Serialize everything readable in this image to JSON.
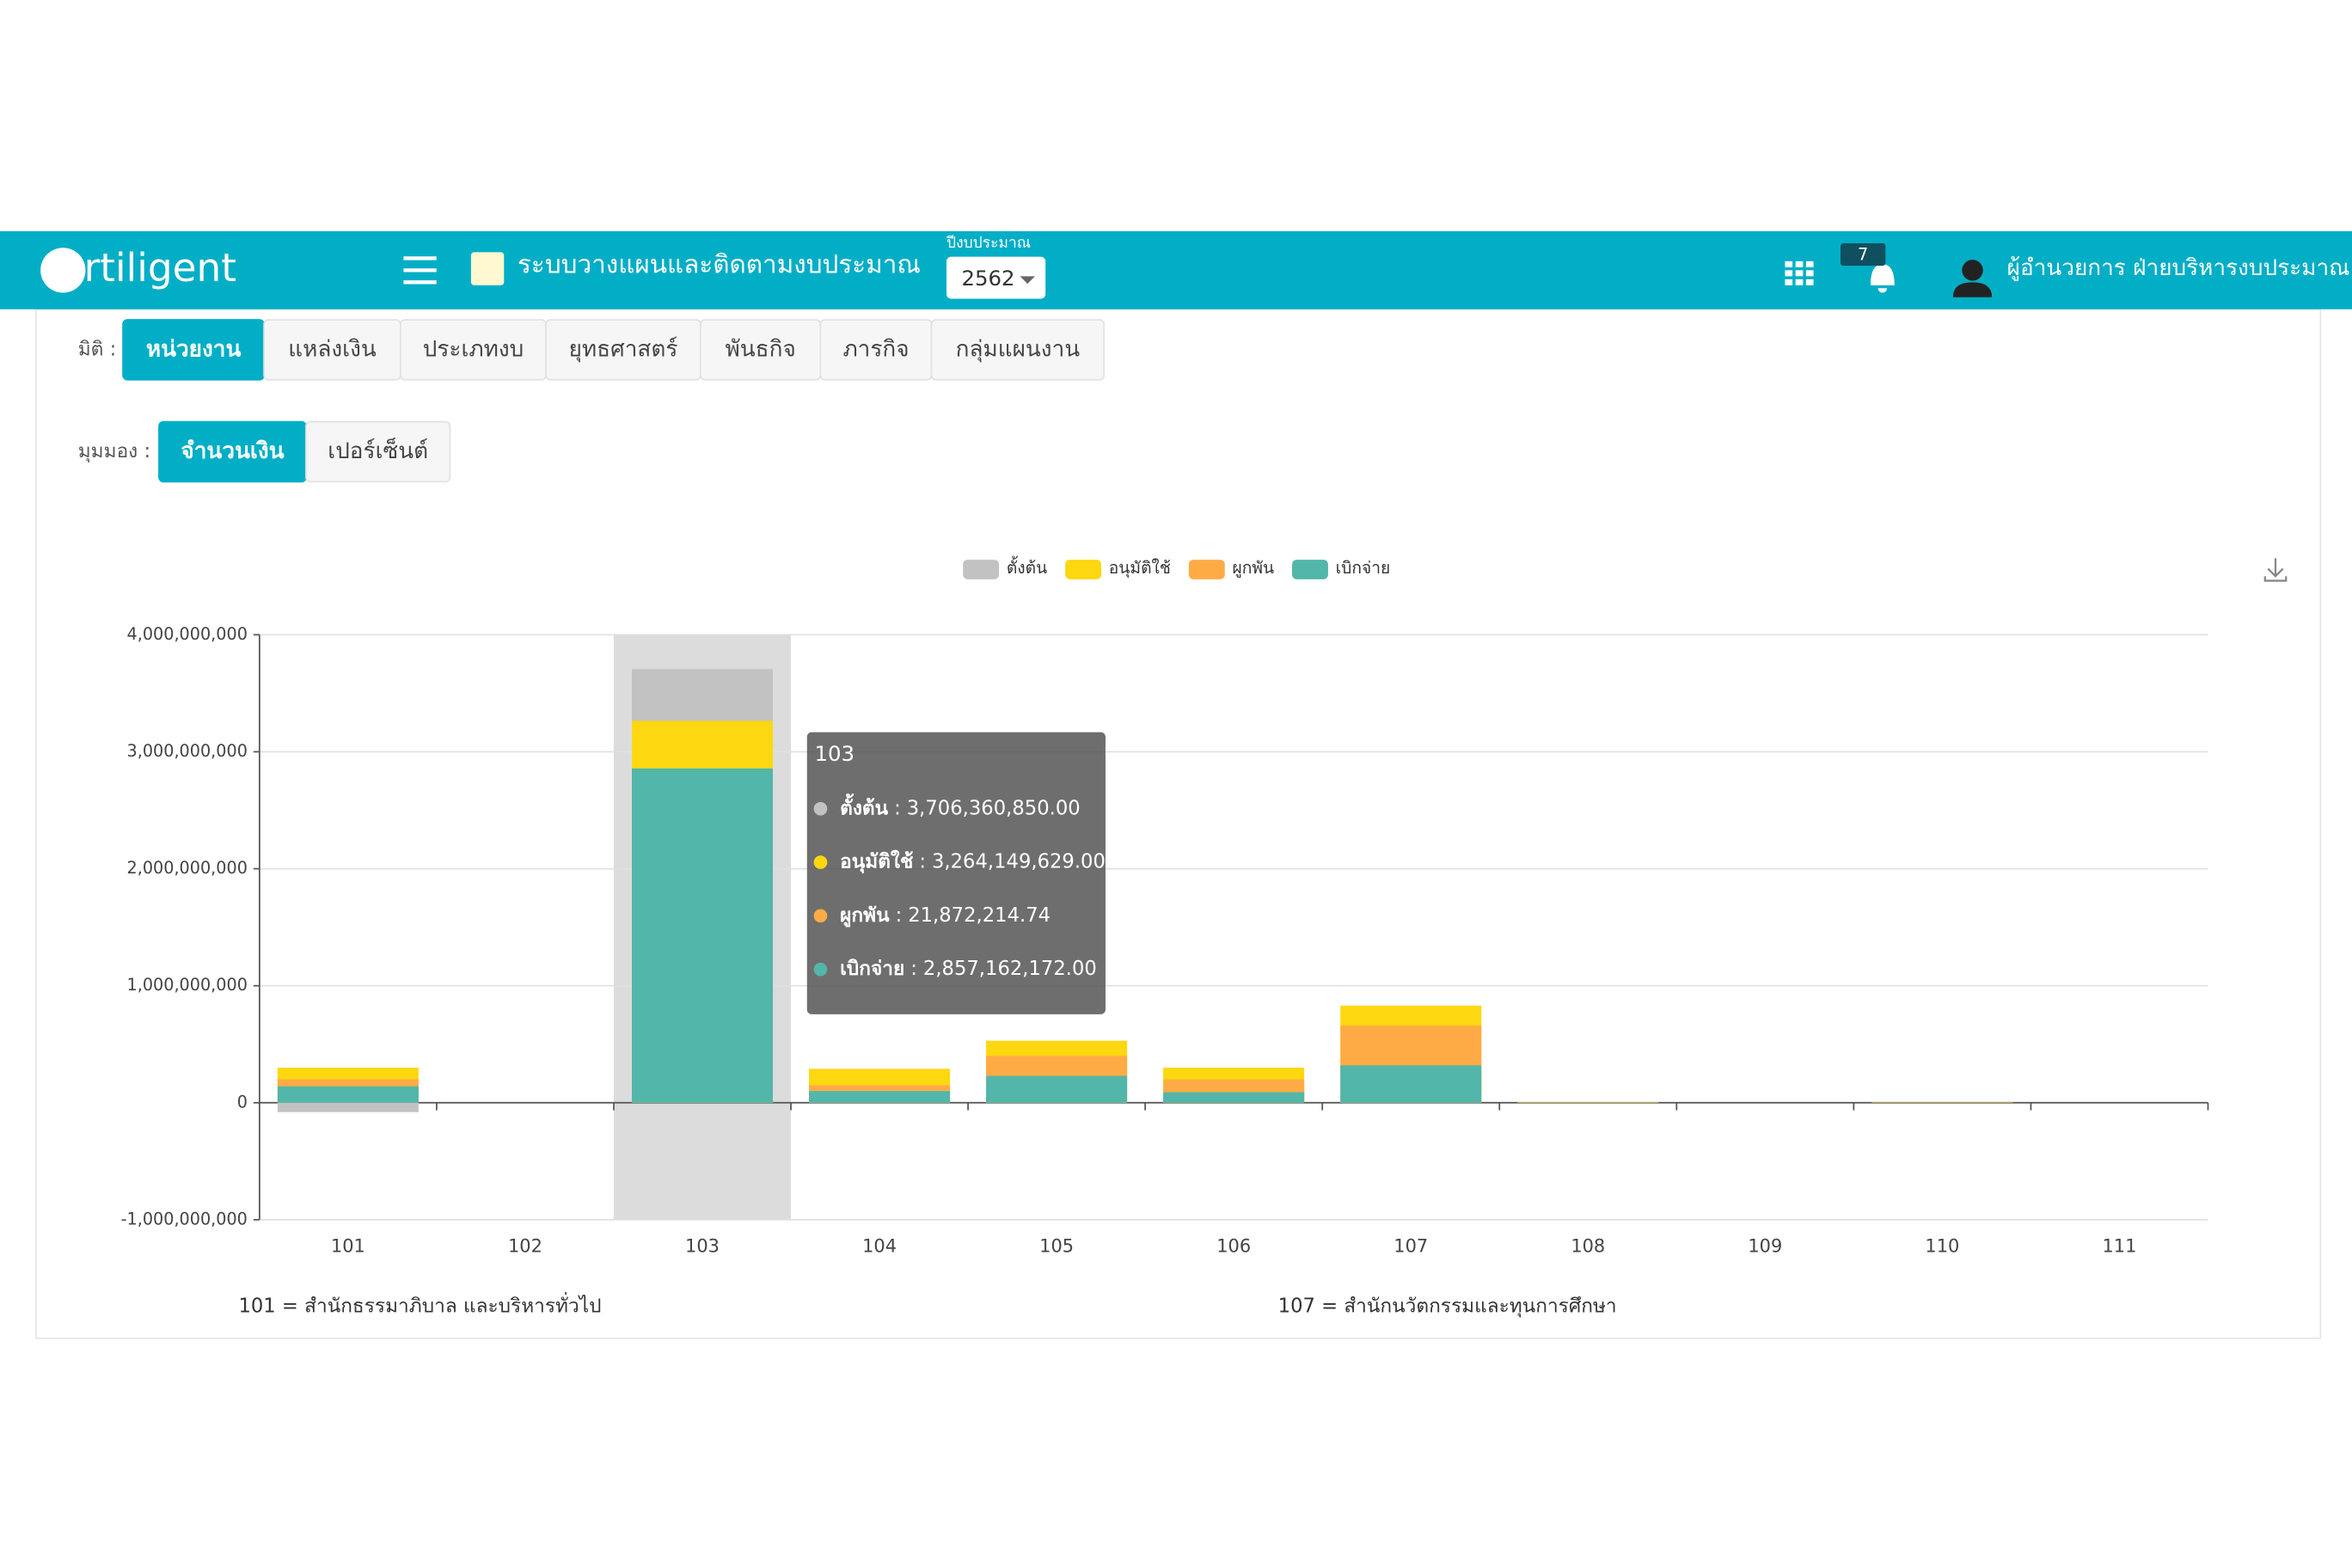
{
  "header": {
    "logo": "artiligent",
    "system_title": "ระบบวางแผนและติดตามงบประมาณ",
    "year_label": "ปีงบประมาณ",
    "year": "2562",
    "notifications": "7",
    "user": "ผู้อำนวยการ ฝ่ายบริหารงบประมาณ"
  },
  "dimension": {
    "label": "มิติ :",
    "tabs": [
      "หน่วยงาน",
      "แหล่งเงิน",
      "ประเภทงบ",
      "ยุทธศาสตร์",
      "พันธกิจ",
      "ภารกิจ",
      "กลุ่มแผนงาน"
    ],
    "active": 0
  },
  "view": {
    "label": "มุมมอง :",
    "tabs": [
      "จำนวนเงิน",
      "เปอร์เซ็นต์"
    ],
    "active": 0
  },
  "chart_data": {
    "type": "bar",
    "categories": [
      "101",
      "102",
      "103",
      "104",
      "105",
      "106",
      "107",
      "108",
      "109",
      "110",
      "111"
    ],
    "series": [
      {
        "name": "ตั้งต้น",
        "color": "#c2c2c2",
        "values": [
          -80000000,
          0,
          3706360850,
          0,
          0,
          0,
          0,
          0,
          0,
          0,
          0
        ],
        "value_labels": [
          null,
          null,
          "3,706,360,850.00",
          null,
          null,
          null,
          null,
          null,
          null,
          null,
          null
        ]
      },
      {
        "name": "อนุมัติใช้",
        "color": "#fdd70f",
        "values": [
          300000000,
          0,
          3264149629,
          290000000,
          530000000,
          300000000,
          830000000,
          5000000,
          0,
          4000000,
          0
        ],
        "value_labels": [
          null,
          null,
          "3,264,149,629.00",
          null,
          null,
          null,
          null,
          null,
          null,
          null,
          null
        ]
      },
      {
        "name": "ผูกพัน",
        "color": "#ffab45",
        "values": [
          200000000,
          0,
          21872214.74,
          150000000,
          400000000,
          200000000,
          660000000,
          3000000,
          0,
          2000000,
          0
        ],
        "value_labels": [
          null,
          null,
          "21,872,214.74",
          null,
          null,
          null,
          null,
          null,
          null,
          null,
          null
        ]
      },
      {
        "name": "เบิกจ่าย",
        "color": "#52b6aa",
        "values": [
          140000000,
          0,
          2857162172,
          100000000,
          230000000,
          90000000,
          320000000,
          2000000,
          0,
          1000000,
          0
        ],
        "value_labels": [
          null,
          null,
          "2,857,162,172.00",
          null,
          null,
          null,
          null,
          null,
          null,
          null,
          null
        ]
      }
    ],
    "ylim": [
      -1000000000,
      4000000000
    ],
    "yticks": [
      {
        "value": -1000000000,
        "label": "-1,000,000,000"
      },
      0,
      {
        "value": 1000000000,
        "label": "1,000,000,000"
      },
      {
        "value": 2000000000,
        "label": "2,000,000,000"
      },
      {
        "value": 3000000000,
        "label": "3,000,000,000"
      },
      {
        "value": 4000000000,
        "label": "4,000,000,000"
      }
    ],
    "grid": true,
    "legend": "top",
    "tooltip": {
      "category": 2,
      "separator": ":"
    }
  },
  "footnotes": [
    "101 = สำนักธรรมาภิบาล และบริหารทั่วไป",
    "107 = สำนักนวัตกรรมและทุนการศึกษา"
  ]
}
